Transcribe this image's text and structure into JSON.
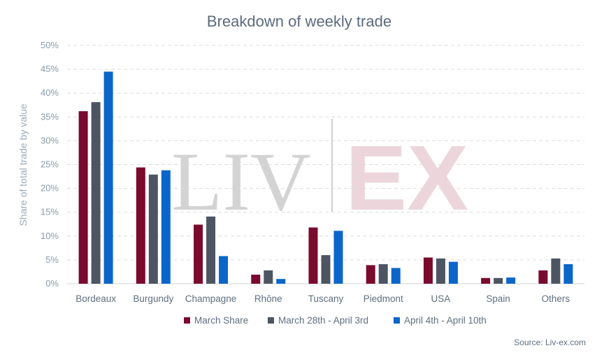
{
  "chart_data": {
    "type": "bar",
    "title": "Breakdown of weekly trade",
    "ylabel": "Share of total trade by value",
    "xlabel": "",
    "ylim": [
      0,
      50
    ],
    "yticks": [
      "0%",
      "5%",
      "10%",
      "15%",
      "20%",
      "25%",
      "30%",
      "35%",
      "40%",
      "45%",
      "50%"
    ],
    "grid": true,
    "legend_position": "bottom",
    "categories": [
      "Bordeaux",
      "Burgundy",
      "Champagne",
      "Rhône",
      "Tuscany",
      "Piedmont",
      "USA",
      "Spain",
      "Others"
    ],
    "series": [
      {
        "name": "March Share",
        "color": "#7a0a2e",
        "values": [
          36.2,
          24.4,
          12.4,
          1.9,
          11.8,
          3.9,
          5.5,
          1.2,
          2.8
        ]
      },
      {
        "name": "March 28th - April 3rd",
        "color": "#4d5563",
        "values": [
          38.1,
          22.9,
          14.1,
          2.8,
          6.0,
          4.1,
          5.3,
          1.2,
          5.3
        ]
      },
      {
        "name": "April 4th - April 10th",
        "color": "#0b66c9",
        "values": [
          44.5,
          23.8,
          5.8,
          1.0,
          11.1,
          3.3,
          4.6,
          1.3,
          4.1
        ]
      }
    ],
    "source": "Source: Liv-ex.com",
    "watermark": {
      "left": "LIV",
      "right": "EX"
    }
  }
}
